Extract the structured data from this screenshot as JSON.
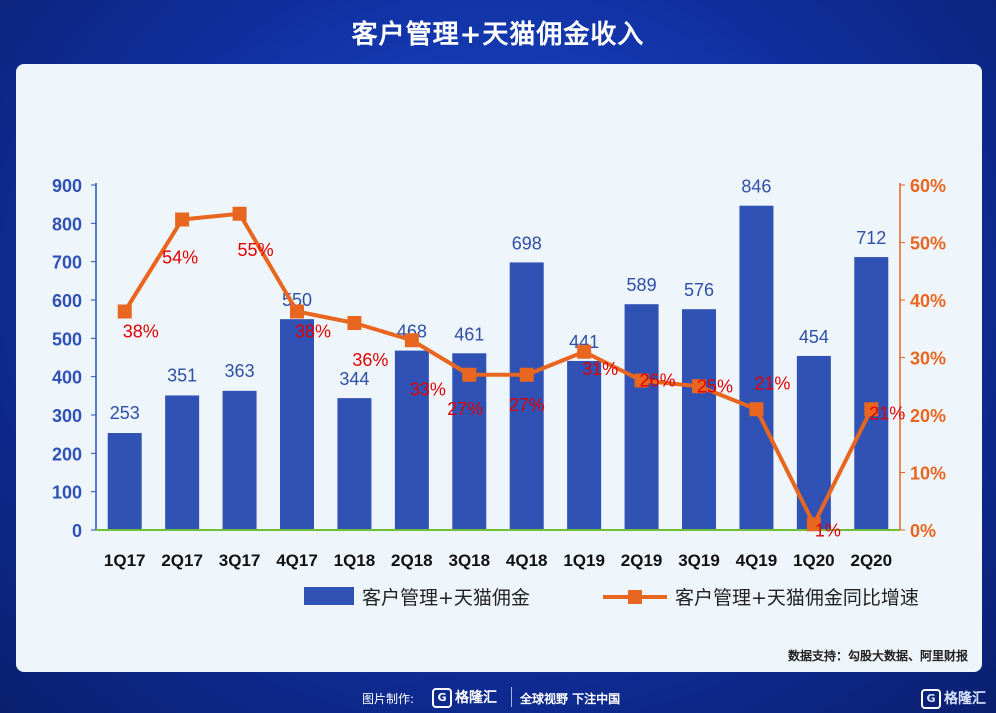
{
  "page_title": "客户管理+天猫佣金收入",
  "source_note": "数据支持：勾股大数据、阿里财报",
  "footer": {
    "made_by_label": "图片制作:",
    "logo_text": "格隆汇",
    "slogan": "全球视野 下注中国",
    "corner_logo": "格隆汇"
  },
  "chart_data": {
    "type": "bar+line",
    "title": "客户管理+天猫佣金收入",
    "categories": [
      "1Q17",
      "2Q17",
      "3Q17",
      "4Q17",
      "1Q18",
      "2Q18",
      "3Q18",
      "4Q18",
      "1Q19",
      "2Q19",
      "3Q19",
      "4Q19",
      "1Q20",
      "2Q20"
    ],
    "series": [
      {
        "name": "客户管理+天猫佣金",
        "type": "bar",
        "axis": "left",
        "color": "#2f52b4",
        "values": [
          253,
          351,
          363,
          550,
          344,
          468,
          461,
          698,
          441,
          589,
          576,
          846,
          454,
          712
        ],
        "labels": [
          "253",
          "351",
          "363",
          "550",
          "344",
          "468",
          "461",
          "698",
          "441",
          "589",
          "576",
          "846",
          "454",
          "712"
        ]
      },
      {
        "name": "客户管理+天猫佣金同比增速",
        "type": "line",
        "axis": "right",
        "color": "#e8661f",
        "values": [
          38,
          54,
          55,
          38,
          36,
          33,
          27,
          27,
          31,
          26,
          25,
          21,
          1,
          21
        ],
        "labels": [
          "38%",
          "54%",
          "55%",
          "38%",
          "36%",
          "33%",
          "27%",
          "27%",
          "31%",
          "26%",
          "25%",
          "21%",
          "1%",
          "21%"
        ]
      }
    ],
    "y_left": {
      "min": 0,
      "max": 900,
      "ticks": [
        "0",
        "100",
        "200",
        "300",
        "400",
        "500",
        "600",
        "700",
        "800",
        "900"
      ],
      "color": "#2f52b4"
    },
    "y_right": {
      "min": 0,
      "max": 60,
      "ticks": [
        "0%",
        "10%",
        "20%",
        "30%",
        "40%",
        "50%",
        "60%"
      ],
      "color": "#e8661f"
    },
    "label_color": "#e00000",
    "legend_position": "bottom-right"
  }
}
